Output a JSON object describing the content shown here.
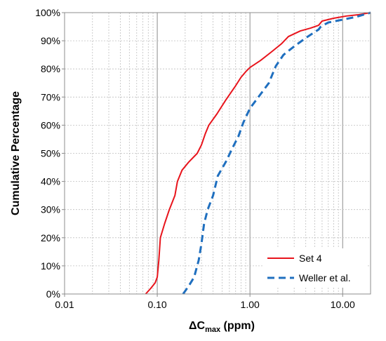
{
  "chart_data": {
    "type": "line",
    "x_scale": "log",
    "xlim": [
      0.01,
      20
    ],
    "ylim": [
      0,
      100
    ],
    "xlabel": {
      "base": "ΔC",
      "sub": "max",
      "unit": " (ppm)"
    },
    "ylabel": "Cumulative Percentage",
    "x_ticks": [
      {
        "value": 0.01,
        "label": "0.01"
      },
      {
        "value": 0.1,
        "label": "0.10"
      },
      {
        "value": 1,
        "label": "1.00"
      },
      {
        "value": 10,
        "label": "10.00"
      }
    ],
    "y_ticks": [
      {
        "value": 0,
        "label": "0%"
      },
      {
        "value": 10,
        "label": "10%"
      },
      {
        "value": 20,
        "label": "20%"
      },
      {
        "value": 30,
        "label": "30%"
      },
      {
        "value": 40,
        "label": "40%"
      },
      {
        "value": 50,
        "label": "50%"
      },
      {
        "value": 60,
        "label": "60%"
      },
      {
        "value": 70,
        "label": "70%"
      },
      {
        "value": 80,
        "label": "80%"
      },
      {
        "value": 90,
        "label": "90%"
      },
      {
        "value": 100,
        "label": "100%"
      }
    ],
    "grid": true,
    "legend_position": "bottom-right",
    "series": [
      {
        "name": "Set 4",
        "color": "#e8141c",
        "dash": "solid",
        "points": [
          [
            0.075,
            0
          ],
          [
            0.085,
            2
          ],
          [
            0.095,
            4
          ],
          [
            0.1,
            6
          ],
          [
            0.104,
            12
          ],
          [
            0.108,
            20
          ],
          [
            0.12,
            25
          ],
          [
            0.135,
            30
          ],
          [
            0.155,
            35
          ],
          [
            0.165,
            40
          ],
          [
            0.185,
            44
          ],
          [
            0.22,
            47
          ],
          [
            0.27,
            50
          ],
          [
            0.3,
            53
          ],
          [
            0.33,
            57
          ],
          [
            0.36,
            60
          ],
          [
            0.44,
            64
          ],
          [
            0.55,
            69
          ],
          [
            0.7,
            74
          ],
          [
            0.8,
            77
          ],
          [
            0.9,
            79
          ],
          [
            1.0,
            80.5
          ],
          [
            1.3,
            83
          ],
          [
            1.7,
            86
          ],
          [
            2.2,
            89
          ],
          [
            2.6,
            91.5
          ],
          [
            3.5,
            93.5
          ],
          [
            4.5,
            94.5
          ],
          [
            5.5,
            95.5
          ],
          [
            6.0,
            97
          ],
          [
            8.0,
            98
          ],
          [
            11.0,
            98.8
          ],
          [
            15.0,
            99.3
          ],
          [
            20.0,
            100
          ]
        ]
      },
      {
        "name": "Weller et al.",
        "color": "#1f6fbf",
        "dash": "dashed",
        "points": [
          [
            0.19,
            0
          ],
          [
            0.22,
            3
          ],
          [
            0.25,
            6
          ],
          [
            0.28,
            12
          ],
          [
            0.3,
            18
          ],
          [
            0.32,
            25
          ],
          [
            0.35,
            30
          ],
          [
            0.4,
            35
          ],
          [
            0.45,
            42
          ],
          [
            0.55,
            47
          ],
          [
            0.65,
            52
          ],
          [
            0.75,
            56
          ],
          [
            0.85,
            61
          ],
          [
            1.0,
            66
          ],
          [
            1.3,
            71
          ],
          [
            1.6,
            75
          ],
          [
            1.9,
            81
          ],
          [
            2.3,
            85
          ],
          [
            3.0,
            88
          ],
          [
            4.0,
            91
          ],
          [
            5.5,
            94
          ],
          [
            5.8,
            95
          ],
          [
            7.0,
            96.5
          ],
          [
            10.0,
            97.5
          ],
          [
            14.0,
            98.5
          ],
          [
            20.0,
            100
          ]
        ]
      }
    ]
  }
}
